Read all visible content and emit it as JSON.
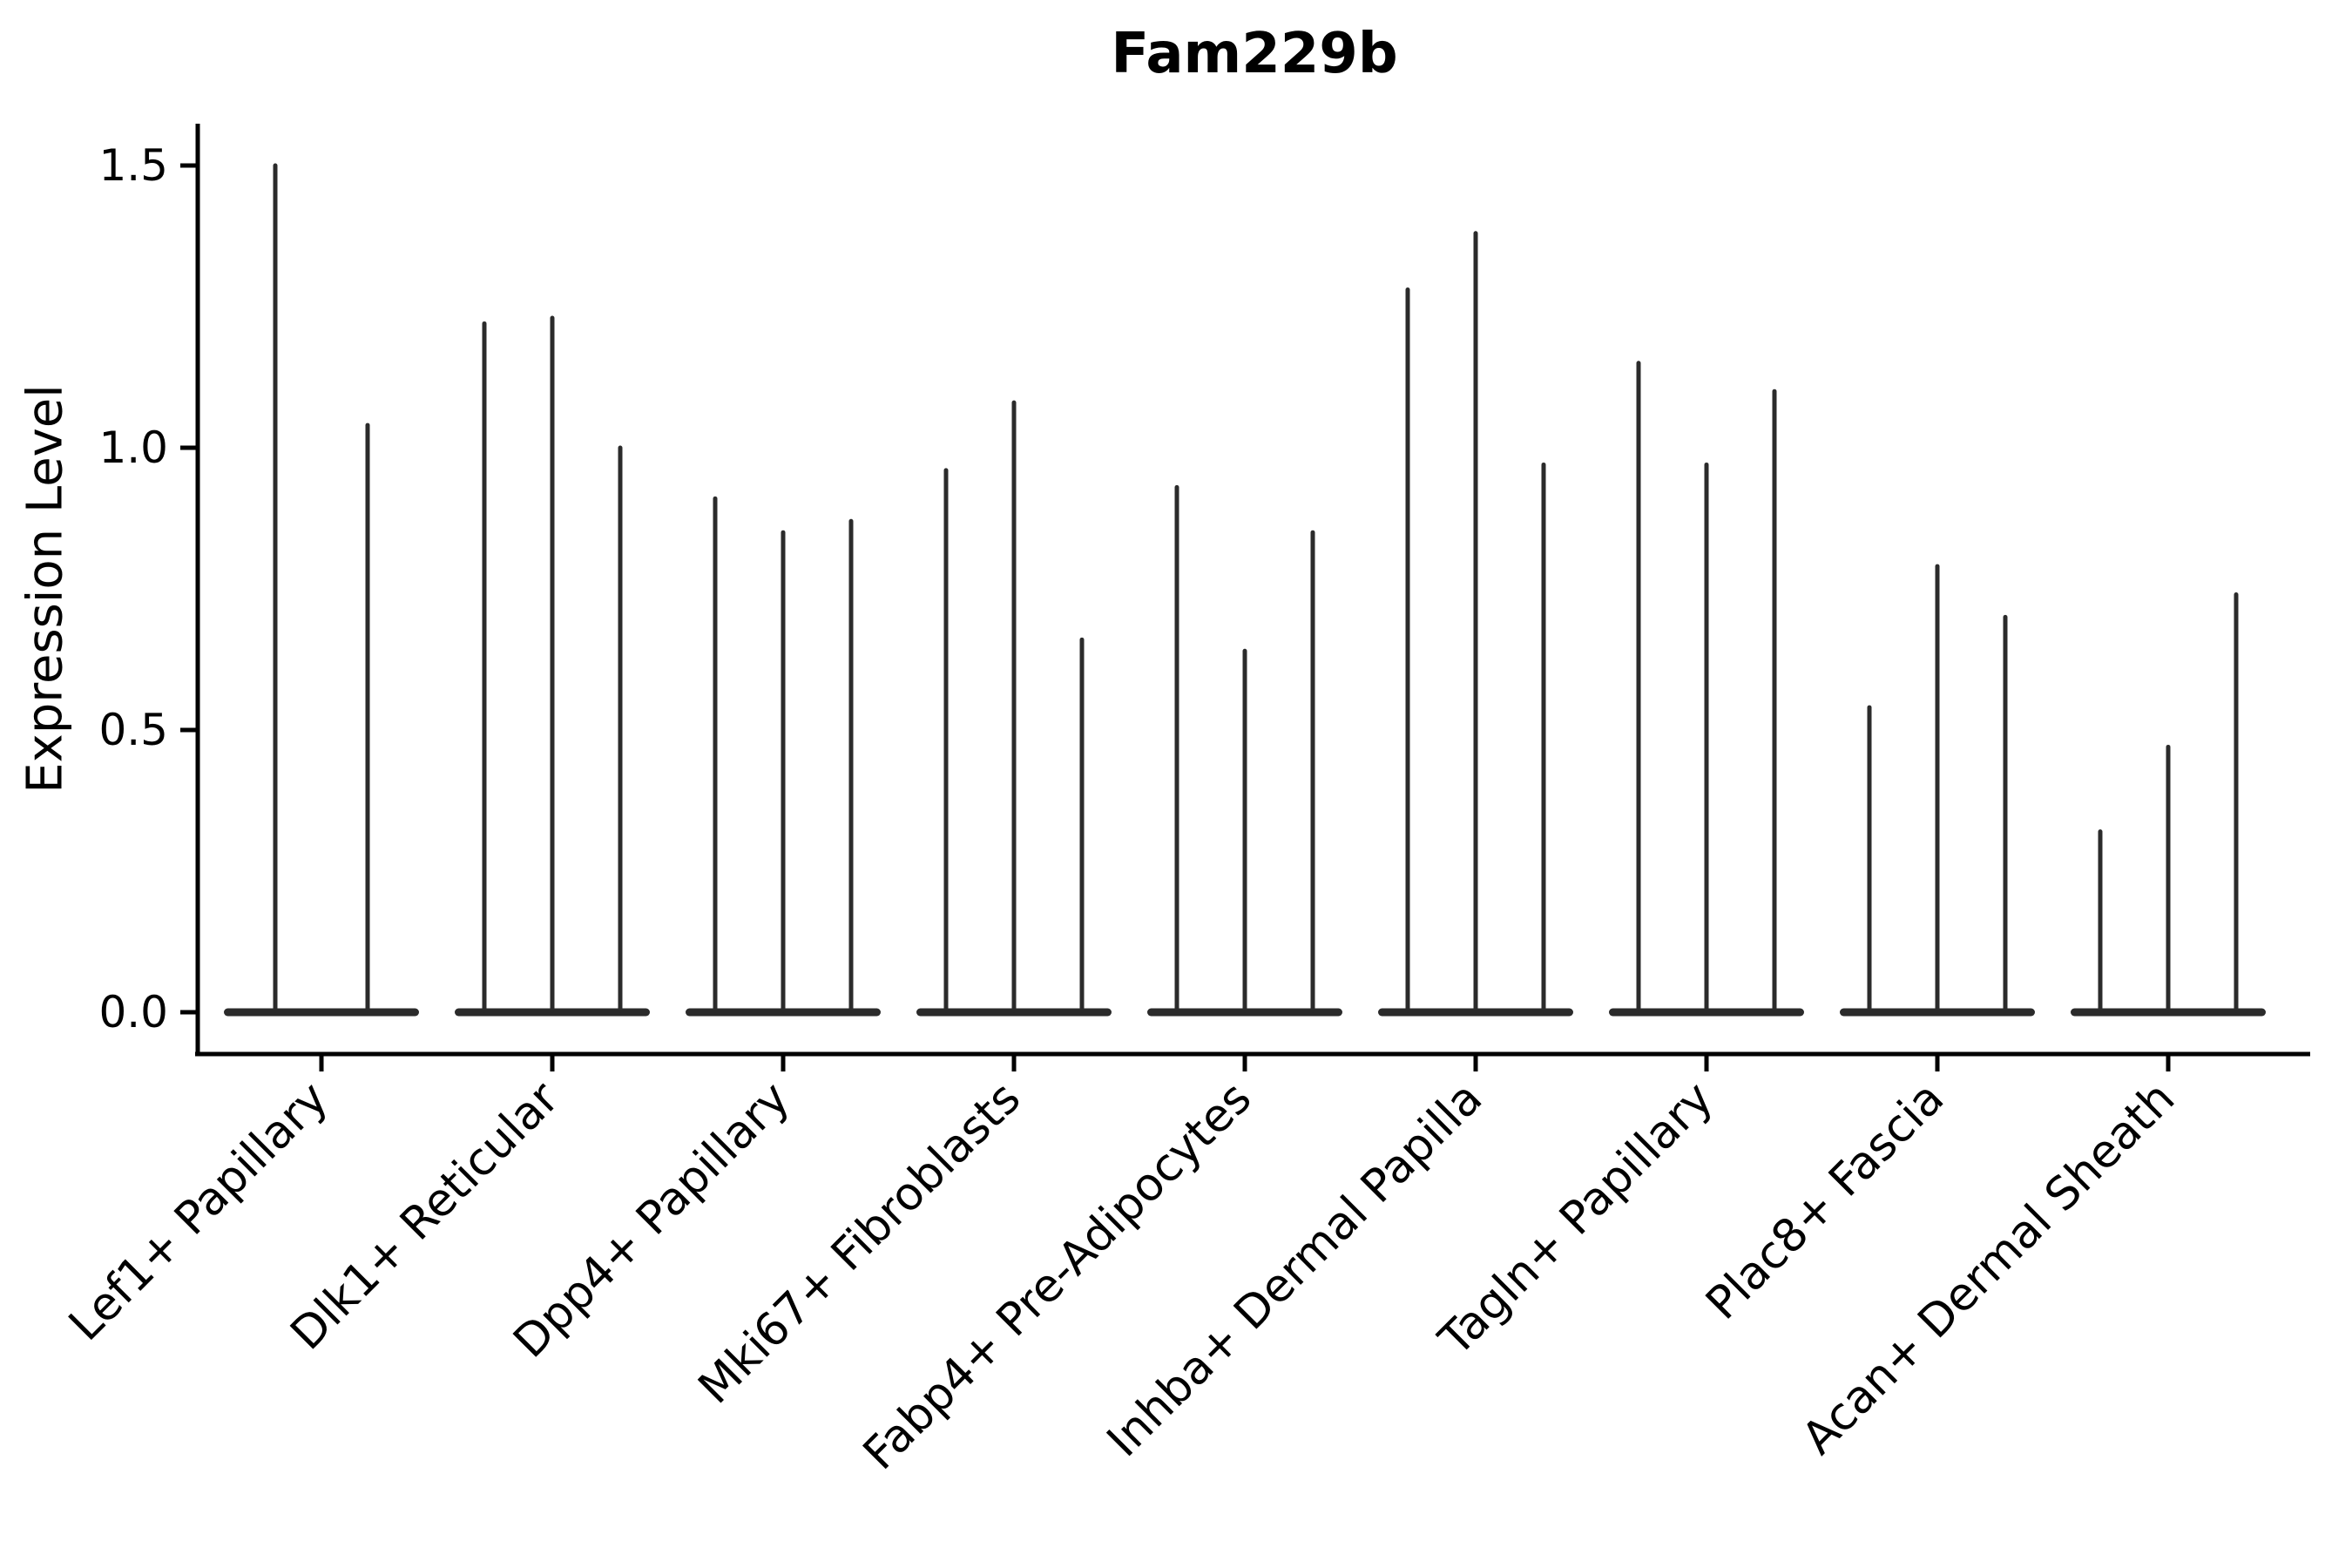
{
  "chart_data": {
    "type": "violin",
    "title": "Fam229b",
    "ylabel": "Expression Level",
    "xlabel": "",
    "categories": [
      "Lef1+ Papillary",
      "Dlk1+ Reticular",
      "Dpp4+ Papillary",
      "Mki67+ Fibroblasts",
      "Fabp4+ Pre-Adipocytes",
      "Inhba+ Dermal Papilla",
      "Tagln+ Papillary",
      "Plac8+ Fascia",
      "Acan+ Dermal Sheath"
    ],
    "violin_max_heights": [
      [
        1.5,
        1.04
      ],
      [
        1.22,
        1.23,
        1.0
      ],
      [
        0.91,
        0.85,
        0.87
      ],
      [
        0.96,
        1.08,
        0.66
      ],
      [
        0.93,
        0.64,
        0.85
      ],
      [
        1.28,
        1.38,
        0.97
      ],
      [
        1.15,
        0.97,
        1.1
      ],
      [
        0.54,
        0.79,
        0.7
      ],
      [
        0.32,
        0.47,
        0.74
      ]
    ],
    "violin_baseline_value": 0.0,
    "ytick_labels": [
      "0.0",
      "0.5",
      "1.0",
      "1.5"
    ],
    "ytick_values": [
      0.0,
      0.5,
      1.0,
      1.5
    ],
    "ylim": [
      -0.07,
      1.57
    ],
    "grid": false,
    "legend": "none",
    "xtick_rotation_deg": 45,
    "colors": {
      "violin": "#2b2b2b",
      "axis": "#000000",
      "background": "#ffffff"
    }
  }
}
